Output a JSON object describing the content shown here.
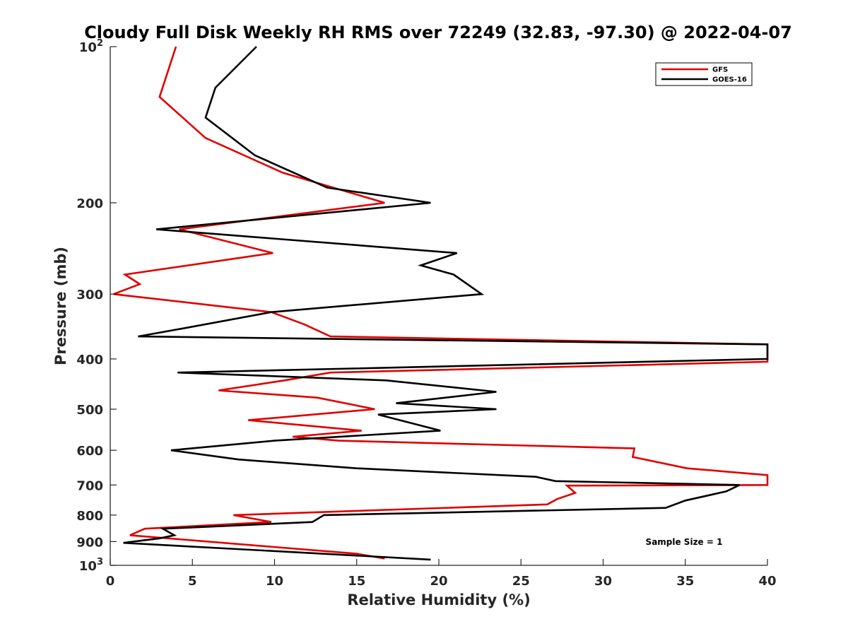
{
  "chart_data": {
    "type": "line",
    "title": "Cloudy Full Disk Weekly RH RMS over 72249 (32.83, -97.30) @ 2022-04-07",
    "xlabel": "Relative Humidity (%)",
    "ylabel": "Pressure (mb)",
    "xlim": [
      0,
      40
    ],
    "ylim": [
      100,
      1000
    ],
    "yscale": "log",
    "y_reversed": true,
    "x_ticks": [
      "0",
      "5",
      "10",
      "15",
      "20",
      "25",
      "30",
      "35",
      "40"
    ],
    "x_tick_values": [
      0,
      5,
      10,
      15,
      20,
      25,
      30,
      35,
      40
    ],
    "y_ticks": [
      {
        "value": 100,
        "base": "10",
        "exp": "2"
      },
      {
        "value": 200,
        "label": "200"
      },
      {
        "value": 300,
        "label": "300"
      },
      {
        "value": 400,
        "label": "400"
      },
      {
        "value": 500,
        "label": "500"
      },
      {
        "value": 600,
        "label": "600"
      },
      {
        "value": 700,
        "label": "700"
      },
      {
        "value": 800,
        "label": "800"
      },
      {
        "value": 900,
        "label": "900"
      },
      {
        "value": 1000,
        "base": "10",
        "exp": "3"
      }
    ],
    "grid": false,
    "legend_position": "top-right",
    "annotation": "Sample Size = 1",
    "series": [
      {
        "name": "GFS",
        "color": "#e00000",
        "points": [
          [
            4.0,
            100
          ],
          [
            3.0,
            125
          ],
          [
            5.8,
            150
          ],
          [
            10.5,
            175
          ],
          [
            16.7,
            200
          ],
          [
            4.2,
            225
          ],
          [
            9.9,
            250
          ],
          [
            0.9,
            275
          ],
          [
            1.8,
            287
          ],
          [
            0.2,
            300
          ],
          [
            9.8,
            325
          ],
          [
            11.8,
            343
          ],
          [
            13.4,
            362
          ],
          [
            40.0,
            375
          ],
          [
            40.0,
            405
          ],
          [
            13.4,
            425
          ],
          [
            10.6,
            440
          ],
          [
            6.6,
            460
          ],
          [
            12.6,
            475
          ],
          [
            16.1,
            500
          ],
          [
            8.4,
            525
          ],
          [
            15.3,
            550
          ],
          [
            11.1,
            565
          ],
          [
            13.9,
            575
          ],
          [
            31.9,
            595
          ],
          [
            31.8,
            618
          ],
          [
            35.1,
            650
          ],
          [
            40.0,
            670
          ],
          [
            40.0,
            700
          ],
          [
            27.8,
            702
          ],
          [
            28.3,
            725
          ],
          [
            27.2,
            745
          ],
          [
            26.6,
            763
          ],
          [
            7.5,
            800
          ],
          [
            9.8,
            825
          ],
          [
            2.1,
            850
          ],
          [
            1.2,
            875
          ],
          [
            15.0,
            950
          ],
          [
            16.7,
            970
          ]
        ]
      },
      {
        "name": "GOES-16",
        "color": "#000000",
        "points": [
          [
            8.9,
            100
          ],
          [
            6.4,
            120
          ],
          [
            5.8,
            137
          ],
          [
            8.8,
            162
          ],
          [
            13.2,
            187
          ],
          [
            19.5,
            200
          ],
          [
            2.8,
            225
          ],
          [
            21.1,
            250
          ],
          [
            18.9,
            264
          ],
          [
            20.9,
            275
          ],
          [
            22.6,
            300
          ],
          [
            9.8,
            325
          ],
          [
            4.3,
            350
          ],
          [
            1.7,
            362
          ],
          [
            40.0,
            375
          ],
          [
            40.0,
            400
          ],
          [
            4.1,
            425
          ],
          [
            16.8,
            440
          ],
          [
            23.5,
            463
          ],
          [
            17.4,
            487
          ],
          [
            23.5,
            500
          ],
          [
            16.3,
            512
          ],
          [
            20.1,
            550
          ],
          [
            10.0,
            575
          ],
          [
            3.7,
            600
          ],
          [
            7.8,
            625
          ],
          [
            15.0,
            650
          ],
          [
            25.9,
            675
          ],
          [
            27.1,
            688
          ],
          [
            38.3,
            700
          ],
          [
            37.5,
            720
          ],
          [
            35.0,
            750
          ],
          [
            33.8,
            775
          ],
          [
            13.0,
            800
          ],
          [
            12.3,
            825
          ],
          [
            3.2,
            850
          ],
          [
            3.9,
            875
          ],
          [
            3.0,
            887
          ],
          [
            0.8,
            905
          ],
          [
            19.5,
            975
          ]
        ]
      }
    ]
  }
}
